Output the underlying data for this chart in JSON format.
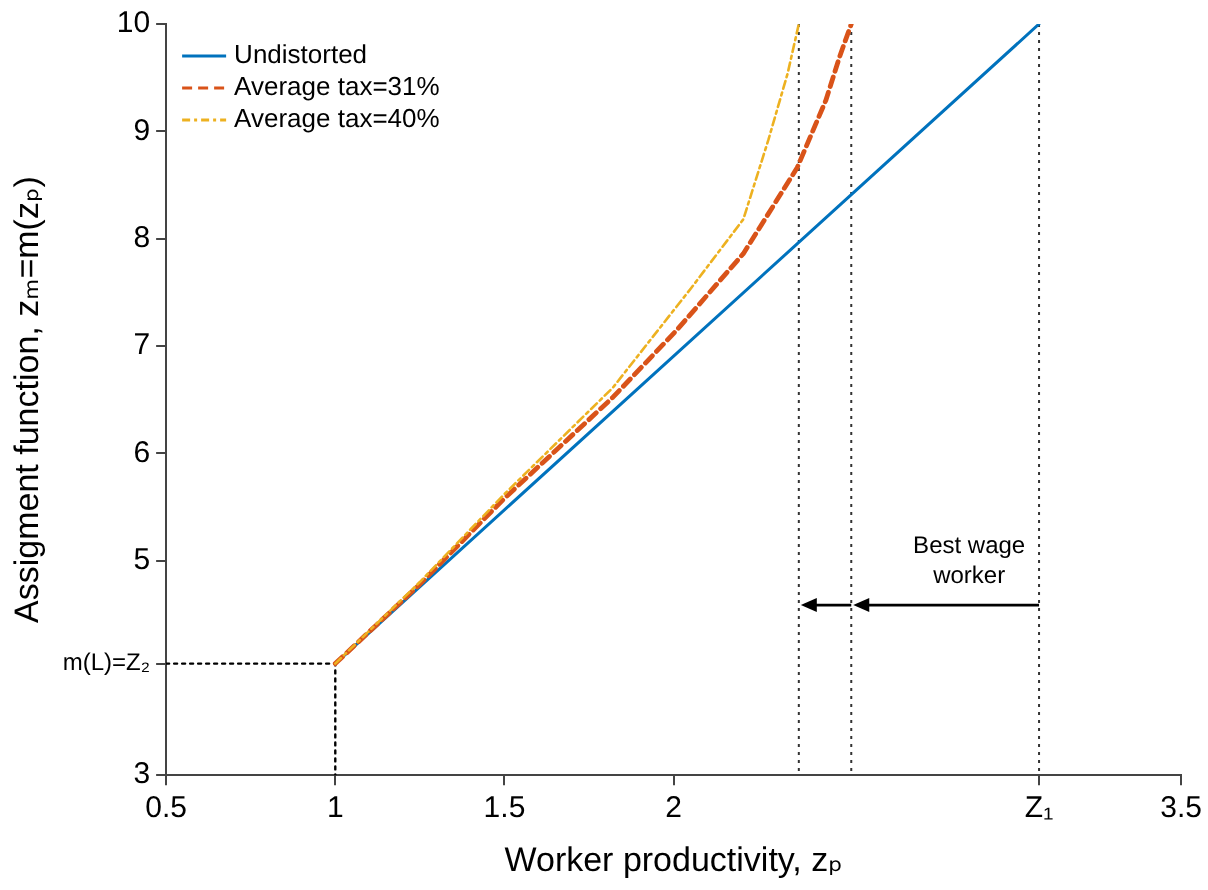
{
  "chart_data": {
    "type": "line",
    "xlabel": "Worker productivity, zₚ",
    "ylabel": "Assigment function, zₘ=m(zₚ)",
    "xlim": [
      0.5,
      3.5
    ],
    "xticks": [
      0.5,
      1,
      1.5,
      2,
      {
        "value": 3.08,
        "label": "Z₁"
      },
      3.5
    ],
    "ylim": [
      3,
      10
    ],
    "yticks": [
      3,
      {
        "value": 4.04,
        "label": "m(L)=Z₂"
      },
      5,
      6,
      7,
      8,
      9,
      10
    ],
    "series": [
      {
        "name": "Undistorted",
        "color": "#0072bd",
        "line_style": "solid",
        "x": [
          1,
          3.08
        ],
        "values": [
          4.04,
          10
        ]
      },
      {
        "name": "Average tax=31%",
        "color": "#d95319",
        "line_style": "dashed",
        "x": [
          1,
          1.25,
          1.5,
          1.82,
          2.01,
          2.206,
          2.365,
          2.45,
          2.49,
          2.525
        ],
        "values": [
          4.04,
          4.78,
          5.58,
          6.52,
          7.15,
          7.86,
          8.66,
          9.29,
          9.69,
          10
        ]
      },
      {
        "name": "Average tax=40%",
        "color": "#edb120",
        "line_style": "dashed",
        "x": [
          1,
          1.25,
          1.5,
          1.82,
          2.052,
          2.206,
          2.28,
          2.337,
          2.37
        ],
        "values": [
          4.04,
          4.8,
          5.62,
          6.61,
          7.54,
          8.18,
          8.92,
          9.54,
          10
        ]
      },
      {
        "color": "#000000",
        "line_style": "dotted",
        "x": [
          0.5,
          1,
          1
        ],
        "values": [
          4.04,
          4.04,
          3
        ]
      }
    ],
    "ref_lines": [
      {
        "axis": "x",
        "value": 2.37,
        "color": "#333333",
        "line_style": "dotted"
      },
      {
        "axis": "x",
        "value": 2.525,
        "color": "#333333",
        "line_style": "dotted"
      },
      {
        "axis": "x",
        "value": 3.08,
        "color": "#333333",
        "line_style": "dotted"
      }
    ],
    "annotations": [
      "Best wage worker"
    ],
    "legend": "top left",
    "grid": false
  }
}
